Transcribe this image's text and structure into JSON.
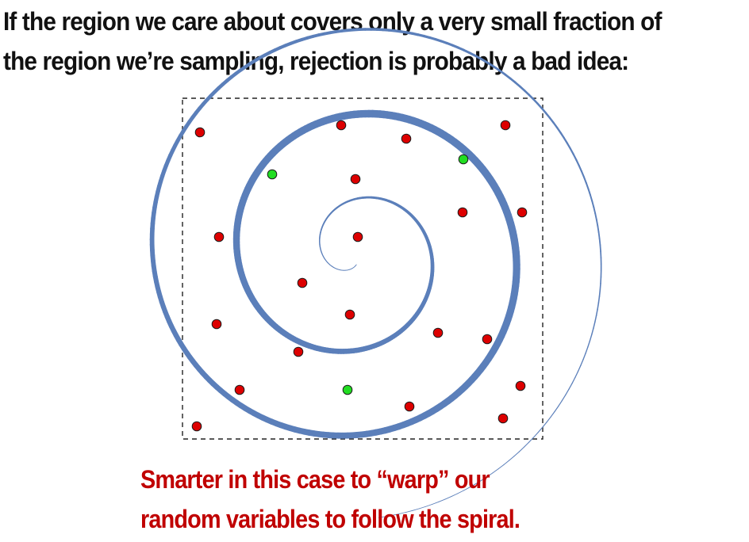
{
  "heading": {
    "line1": "If the region we care about covers only a very small fraction of",
    "line2": "the region we’re sampling, rejection is probably a bad idea:"
  },
  "caption": {
    "line1": "Smarter in this case to “warp” our",
    "line2": "random variables to follow the spiral."
  },
  "colors": {
    "text": "#111111",
    "caption": "#c00000",
    "spiral": "#5b7fba",
    "rejected_point": "#dd0000",
    "accepted_point": "#22dd22",
    "region_border": "#222222"
  },
  "diagram": {
    "points": {
      "rejected": 22,
      "accepted": 3
    }
  }
}
